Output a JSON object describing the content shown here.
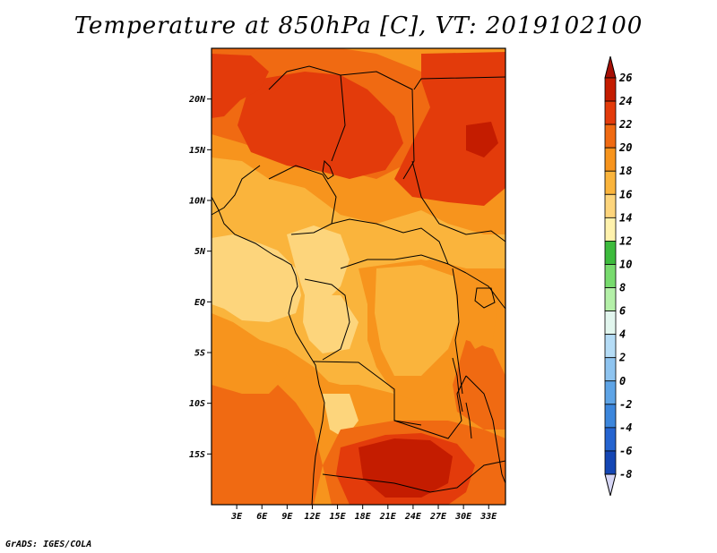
{
  "title": "Temperature at 850hPa [C], VT: 2019102100",
  "credit": "GrADS: IGES/COLA",
  "map": {
    "lon_range": [
      0,
      35
    ],
    "lat_range": [
      -20,
      25
    ],
    "lat_ticks": [
      {
        "value": 20,
        "label": "20N"
      },
      {
        "value": 15,
        "label": "15N"
      },
      {
        "value": 10,
        "label": "10N"
      },
      {
        "value": 5,
        "label": "5N"
      },
      {
        "value": 0,
        "label": "EQ"
      },
      {
        "value": -5,
        "label": "5S"
      },
      {
        "value": -10,
        "label": "10S"
      },
      {
        "value": -15,
        "label": "15S"
      }
    ],
    "lon_ticks": [
      {
        "value": 3,
        "label": "3E"
      },
      {
        "value": 6,
        "label": "6E"
      },
      {
        "value": 9,
        "label": "9E"
      },
      {
        "value": 12,
        "label": "12E"
      },
      {
        "value": 15,
        "label": "15E"
      },
      {
        "value": 18,
        "label": "18E"
      },
      {
        "value": 21,
        "label": "21E"
      },
      {
        "value": 24,
        "label": "24E"
      },
      {
        "value": 27,
        "label": "27E"
      },
      {
        "value": 30,
        "label": "30E"
      },
      {
        "value": 33,
        "label": "33E"
      }
    ]
  },
  "colorbar": {
    "levels": [
      {
        "label": "26",
        "color": "#c41c00"
      },
      {
        "label": "24",
        "color": "#e33b0b"
      },
      {
        "label": "22",
        "color": "#f06a12"
      },
      {
        "label": "20",
        "color": "#f7941d"
      },
      {
        "label": "18",
        "color": "#fab43c"
      },
      {
        "label": "16",
        "color": "#fdd57c"
      },
      {
        "label": "14",
        "color": "#fff2ad"
      },
      {
        "label": "12",
        "color": "#3dbb3d"
      },
      {
        "label": "10",
        "color": "#78db6e"
      },
      {
        "label": "8",
        "color": "#b4f0a8"
      },
      {
        "label": "6",
        "color": "#e2f6ee"
      },
      {
        "label": "4",
        "color": "#b5dcf6"
      },
      {
        "label": "2",
        "color": "#8ec4f0"
      },
      {
        "label": "0",
        "color": "#5ea4e6"
      },
      {
        "label": "-2",
        "color": "#3c86dc"
      },
      {
        "label": "-4",
        "color": "#2564d0"
      },
      {
        "label": "-6",
        "color": "#1446b4"
      },
      {
        "label": "-8",
        "color": "#0a2a8e"
      }
    ],
    "top_triangle_color": "#a50f05",
    "bottom_triangle_color": "#d6d6f5"
  }
}
